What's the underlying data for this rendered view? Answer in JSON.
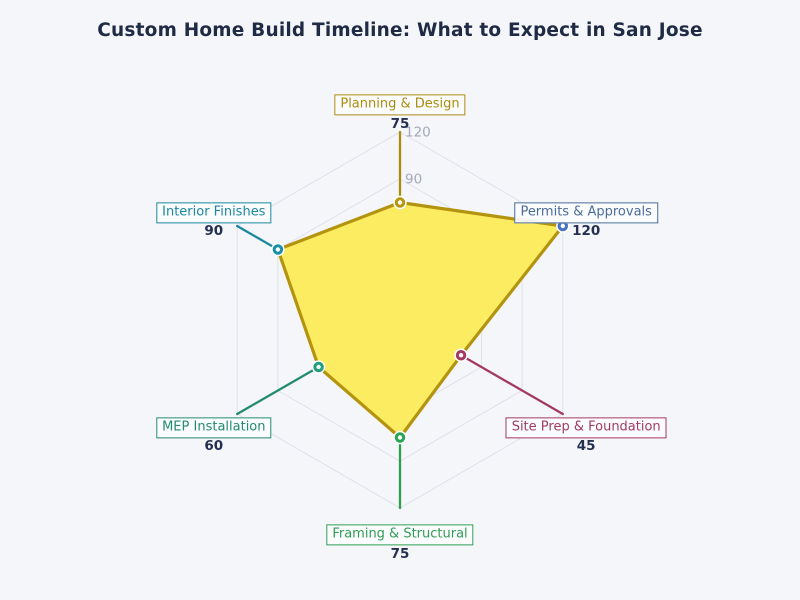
{
  "title": "Custom Home Build Timeline: What to Expect in San Jose",
  "colors": {
    "background": "#f5f6fa",
    "title_text": "#1f2a44",
    "value_text": "#253050",
    "tick_label": "#a2a9b8",
    "grid": "#dde1ea",
    "marker_core": "#ffffff"
  },
  "chart_data": {
    "type": "radar",
    "title": "Custom Home Build Timeline: What to Expect in San Jose",
    "rmax": 120,
    "rmin": 0,
    "tick_interval": 30,
    "visible_tick_labels": [
      90,
      120
    ],
    "grid": "on",
    "legend": "none",
    "fill_color": "#fcec62",
    "outline_color": "#b4940e",
    "categories": [
      {
        "label": "Planning & Design",
        "value": 75,
        "color": "#ab8d0e",
        "marker_color": "#b6960f"
      },
      {
        "label": "Permits & Approvals",
        "value": 120,
        "color": "#4a6d99",
        "marker_color": "#4a72c2"
      },
      {
        "label": "Site Prep & Foundation",
        "value": 45,
        "color": "#a23a61",
        "marker_color": "#a23a61"
      },
      {
        "label": "Framing & Structural",
        "value": 75,
        "color": "#2f9e53",
        "marker_color": "#29a457"
      },
      {
        "label": "MEP Installation",
        "value": 60,
        "color": "#238b6e",
        "marker_color": "#1f9e7b"
      },
      {
        "label": "Interior Finishes",
        "value": 90,
        "color": "#1b87a0",
        "marker_color": "#1a90a8"
      }
    ]
  }
}
